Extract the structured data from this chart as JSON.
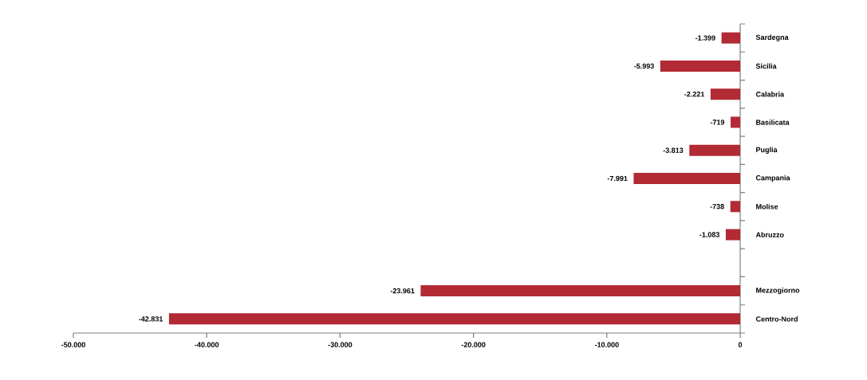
{
  "chart_data": {
    "type": "bar",
    "orientation": "horizontal",
    "categories": [
      "Sardegna",
      "Sicilia",
      "Calabria",
      "Basilicata",
      "Puglia",
      "Campania",
      "Molise",
      "Abruzzo",
      null,
      "Mezzogiorno",
      "Centro-Nord"
    ],
    "values": [
      -1399,
      -5993,
      -2221,
      -719,
      -3813,
      -7991,
      -738,
      -1083,
      null,
      -23961,
      -42831
    ],
    "value_labels": [
      "-1.399",
      "-5.993",
      "-2.221",
      "-719",
      "-3.813",
      "-7.991",
      "-738",
      "-1.083",
      null,
      "-23.961",
      "-42.831"
    ],
    "color": "#b22a34",
    "xlim": [
      -50000,
      0
    ],
    "xticks": [
      {
        "value": -50000,
        "label": "-50.000"
      },
      {
        "value": -40000,
        "label": "-40.000"
      },
      {
        "value": -30000,
        "label": "-30.000"
      },
      {
        "value": -20000,
        "label": "-20.000"
      },
      {
        "value": -10000,
        "label": "-10.000"
      },
      0
    ],
    "grid": false
  }
}
